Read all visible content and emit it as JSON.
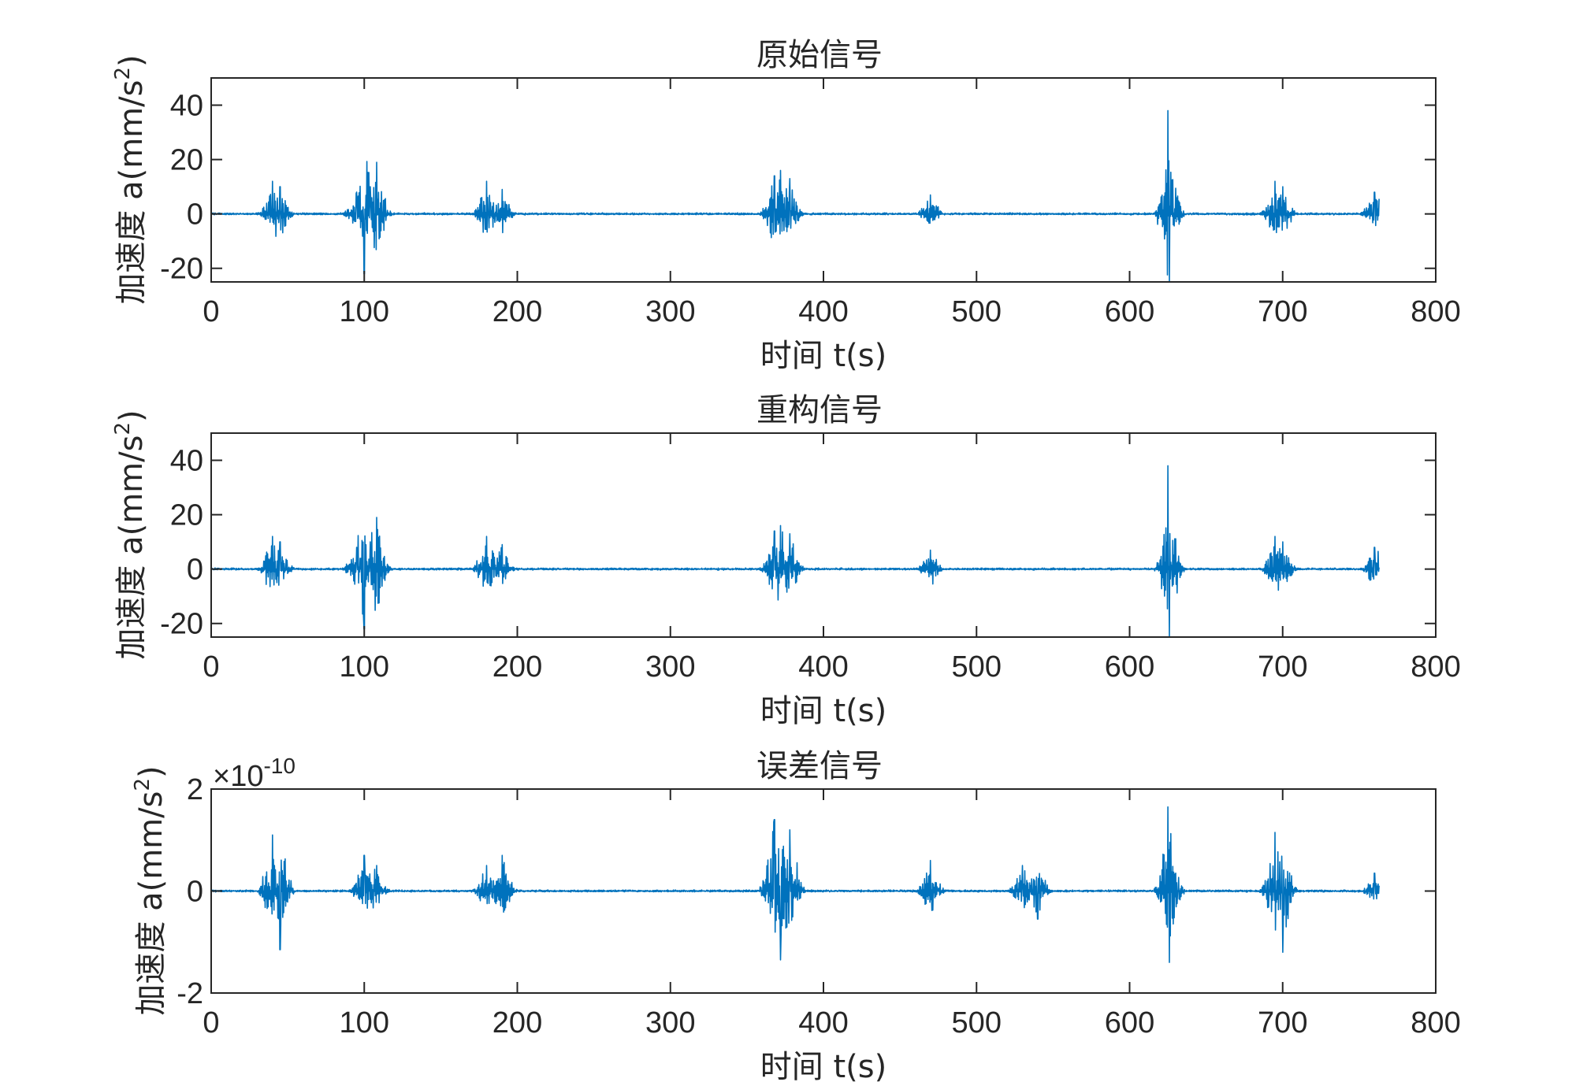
{
  "chart_data": [
    {
      "type": "line",
      "title": "原始信号",
      "xlabel": "时间 t(s)",
      "ylabel_text": "加速度 a(mm/s",
      "ylabel_sup": "2",
      "ylabel_close": ")",
      "xlim": [
        0,
        800
      ],
      "ylim": [
        -25,
        50
      ],
      "xticks": [
        0,
        100,
        200,
        300,
        400,
        500,
        600,
        700,
        800
      ],
      "yticks": [
        -20,
        0,
        20,
        40
      ],
      "color": "#0072BD",
      "bursts": [
        [
          40,
          12
        ],
        [
          45,
          10
        ],
        [
          95,
          8
        ],
        [
          100,
          -22
        ],
        [
          104,
          10
        ],
        [
          108,
          19
        ],
        [
          180,
          12
        ],
        [
          190,
          9
        ],
        [
          368,
          14
        ],
        [
          372,
          16
        ],
        [
          378,
          13
        ],
        [
          470,
          7
        ],
        [
          625,
          38
        ],
        [
          626,
          -25
        ],
        [
          695,
          12
        ],
        [
          700,
          10
        ],
        [
          760,
          8
        ]
      ]
    },
    {
      "type": "line",
      "title": "重构信号",
      "xlabel": "时间 t(s)",
      "ylabel_text": "加速度 a(mm/s",
      "ylabel_sup": "2",
      "ylabel_close": ")",
      "xlim": [
        0,
        800
      ],
      "ylim": [
        -25,
        50
      ],
      "xticks": [
        0,
        100,
        200,
        300,
        400,
        500,
        600,
        700,
        800
      ],
      "yticks": [
        -20,
        0,
        20,
        40
      ],
      "color": "#0072BD",
      "bursts": [
        [
          40,
          12
        ],
        [
          45,
          10
        ],
        [
          95,
          8
        ],
        [
          100,
          -22
        ],
        [
          104,
          10
        ],
        [
          108,
          19
        ],
        [
          180,
          12
        ],
        [
          190,
          9
        ],
        [
          368,
          14
        ],
        [
          372,
          16
        ],
        [
          378,
          13
        ],
        [
          470,
          7
        ],
        [
          625,
          38
        ],
        [
          626,
          -25
        ],
        [
          695,
          12
        ],
        [
          700,
          10
        ],
        [
          760,
          8
        ]
      ]
    },
    {
      "type": "line",
      "title": "误差信号",
      "xlabel": "时间 t(s)",
      "ylabel_text": "加速度 a(mm/s",
      "ylabel_sup": "2",
      "ylabel_close": ")",
      "xlim": [
        0,
        800
      ],
      "ylim": [
        -2,
        2
      ],
      "xticks": [
        0,
        100,
        200,
        300,
        400,
        500,
        600,
        700,
        800
      ],
      "yticks": [
        -2,
        0,
        2
      ],
      "multiplier_base": "×10",
      "multiplier_exp": "-10",
      "color": "#0072BD",
      "bursts": [
        [
          40,
          1.1
        ],
        [
          45,
          -1.15
        ],
        [
          100,
          0.7
        ],
        [
          108,
          0.5
        ],
        [
          180,
          0.5
        ],
        [
          190,
          0.7
        ],
        [
          368,
          1.4
        ],
        [
          372,
          -1.35
        ],
        [
          378,
          1.2
        ],
        [
          470,
          0.6
        ],
        [
          530,
          0.5
        ],
        [
          540,
          -0.55
        ],
        [
          625,
          1.65
        ],
        [
          626,
          -1.4
        ],
        [
          695,
          1.15
        ],
        [
          700,
          -1.2
        ],
        [
          760,
          0.35
        ]
      ]
    }
  ]
}
